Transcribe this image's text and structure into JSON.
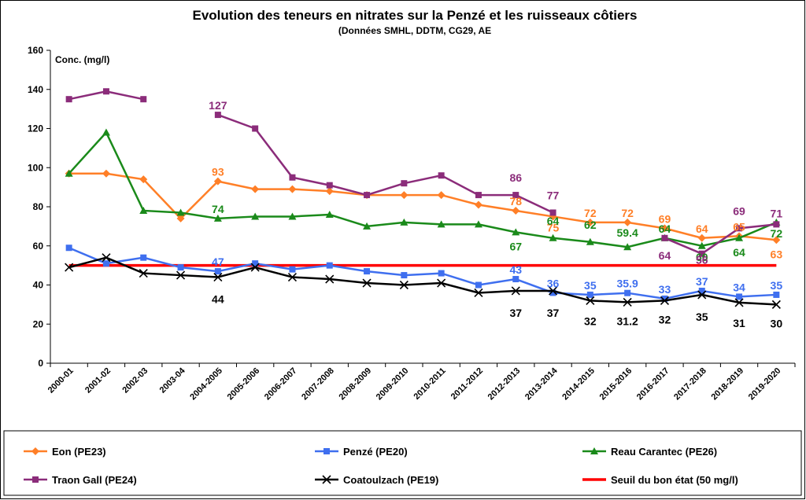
{
  "chart_data": {
    "type": "line",
    "title": "Evolution des teneurs en nitrates sur la Penzé et les ruisseaux côtiers",
    "subtitle": "(Données SMHL, DDTM, CG29, AE",
    "ylabel": "Conc. (mg/l)",
    "ylim": [
      0,
      160
    ],
    "yticks": [
      0,
      20,
      40,
      60,
      80,
      100,
      120,
      140,
      160
    ],
    "grid": false,
    "legend_position": "bottom",
    "categories": [
      "2000-01",
      "2001-02",
      "2002-03",
      "2003-04",
      "2004-2005",
      "2005-2006",
      "2006-2007",
      "2007-2008",
      "2008-2009",
      "2009-2010",
      "2010-2011",
      "2011-2012",
      "2012-2013",
      "2013-2014",
      "2014-2015",
      "2015-2016",
      "2016-2017",
      "2017-2018",
      "2018-2019",
      "2019-2020"
    ],
    "series": [
      {
        "name": "Eon (PE23)",
        "color": "#ff7f27",
        "marker": "diamond",
        "values": [
          97,
          97,
          94,
          74,
          93,
          89,
          89,
          88,
          86,
          86,
          86,
          81,
          78,
          75,
          72,
          72,
          69,
          64,
          65,
          63
        ],
        "labels": [
          {
            "i": 4,
            "text": "93"
          },
          {
            "i": 12,
            "text": "78"
          },
          {
            "i": 13,
            "text": "75"
          },
          {
            "i": 14,
            "text": "72"
          },
          {
            "i": 15,
            "text": "72"
          },
          {
            "i": 16,
            "text": "69"
          },
          {
            "i": 17,
            "text": "64"
          },
          {
            "i": 18,
            "text": "65"
          },
          {
            "i": 19,
            "text": "63"
          }
        ]
      },
      {
        "name": "Penzé (PE20)",
        "color": "#3f6fef",
        "marker": "square",
        "values": [
          59,
          51,
          54,
          49,
          47,
          51,
          48,
          50,
          47,
          45,
          46,
          40,
          43,
          36,
          35,
          35.9,
          33,
          37,
          34,
          35
        ],
        "labels": [
          {
            "i": 4,
            "text": "47"
          },
          {
            "i": 12,
            "text": "43"
          },
          {
            "i": 13,
            "text": "36"
          },
          {
            "i": 14,
            "text": "35"
          },
          {
            "i": 15,
            "text": "35.9"
          },
          {
            "i": 16,
            "text": "33"
          },
          {
            "i": 17,
            "text": "37"
          },
          {
            "i": 18,
            "text": "34"
          },
          {
            "i": 19,
            "text": "35"
          }
        ]
      },
      {
        "name": "Reau Carantec (PE26)",
        "color": "#1a8a1a",
        "marker": "triangle",
        "values": [
          97,
          118,
          78,
          77,
          74,
          75,
          75,
          76,
          70,
          72,
          71,
          71,
          67,
          64,
          62,
          59.4,
          64,
          60,
          64,
          72
        ],
        "labels": [
          {
            "i": 4,
            "text": "74"
          },
          {
            "i": 12,
            "text": "67"
          },
          {
            "i": 13,
            "text": "64"
          },
          {
            "i": 14,
            "text": "62"
          },
          {
            "i": 15,
            "text": "59.4"
          },
          {
            "i": 16,
            "text": "64"
          },
          {
            "i": 17,
            "text": "60"
          },
          {
            "i": 18,
            "text": "64"
          },
          {
            "i": 19,
            "text": "72"
          }
        ]
      },
      {
        "name": "Traon Gall (PE24)",
        "color": "#8b2c7a",
        "marker": "square",
        "values": [
          135,
          139,
          135,
          null,
          127,
          120,
          95,
          91,
          86,
          92,
          96,
          86,
          86,
          77,
          null,
          null,
          64,
          56,
          69,
          71
        ],
        "labels": [
          {
            "i": 4,
            "text": "127"
          },
          {
            "i": 12,
            "text": "86"
          },
          {
            "i": 13,
            "text": "77"
          },
          {
            "i": 16,
            "text": "64"
          },
          {
            "i": 17,
            "text": "56"
          },
          {
            "i": 18,
            "text": "69"
          },
          {
            "i": 19,
            "text": "71"
          }
        ]
      },
      {
        "name": "Coatoulzach (PE19)",
        "color": "#000000",
        "marker": "x",
        "values": [
          49,
          54,
          46,
          45,
          44,
          49,
          44,
          43,
          41,
          40,
          41,
          36,
          37,
          37,
          32,
          31.2,
          32,
          35,
          31,
          30
        ],
        "labels": [
          {
            "i": 4,
            "text": "44"
          },
          {
            "i": 12,
            "text": "37"
          },
          {
            "i": 13,
            "text": "37"
          },
          {
            "i": 14,
            "text": "32"
          },
          {
            "i": 15,
            "text": "31.2"
          },
          {
            "i": 16,
            "text": "32"
          },
          {
            "i": 17,
            "text": "35"
          },
          {
            "i": 18,
            "text": "31"
          },
          {
            "i": 19,
            "text": "30"
          }
        ]
      },
      {
        "name": "Seuil du bon état (50 mg/l)",
        "color": "#ff0000",
        "marker": "none",
        "values": [
          50,
          50,
          50,
          50,
          50,
          50,
          50,
          50,
          50,
          50,
          50,
          50,
          50,
          50,
          50,
          50,
          50,
          50,
          50,
          50
        ],
        "labels": []
      }
    ]
  }
}
